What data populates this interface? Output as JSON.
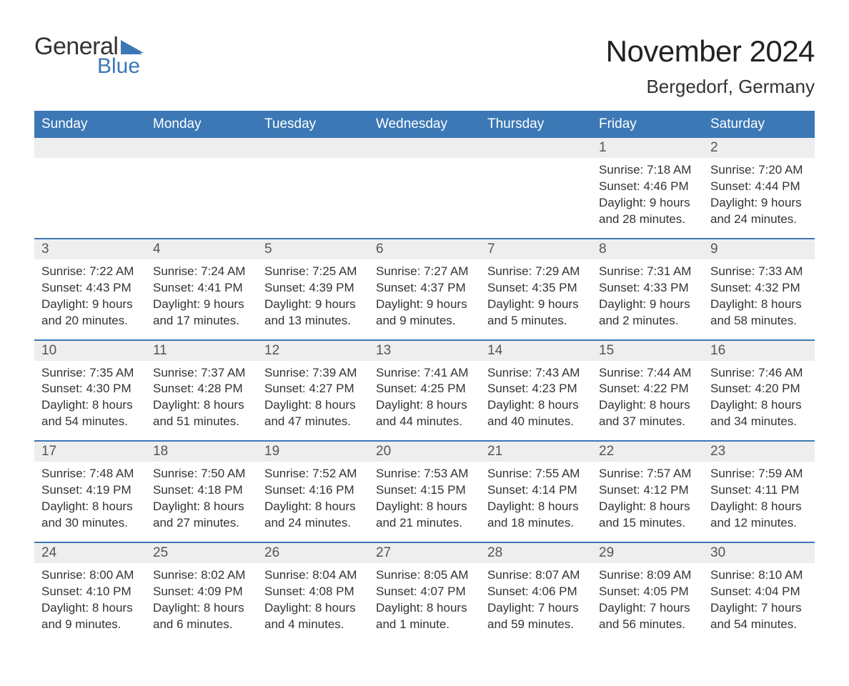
{
  "logo": {
    "text_general": "General",
    "text_blue": "Blue",
    "flag_color": "#3b78b5"
  },
  "header": {
    "month_title": "November 2024",
    "location": "Bergedorf, Germany"
  },
  "colors": {
    "header_bg": "#3b78b5",
    "header_text": "#ffffff",
    "week_rule": "#3b78b5",
    "daynum_bg": "#eeeeee",
    "text": "#333333"
  },
  "typography": {
    "title_fontsize": 42,
    "location_fontsize": 26,
    "dow_fontsize": 19,
    "daynum_fontsize": 19,
    "detail_fontsize": 17
  },
  "layout": {
    "structure_type": "calendar-table",
    "columns": 7,
    "weeks": 5
  },
  "days_of_week": [
    "Sunday",
    "Monday",
    "Tuesday",
    "Wednesday",
    "Thursday",
    "Friday",
    "Saturday"
  ],
  "weeks": [
    {
      "days": [
        {
          "n": "",
          "lines": [
            "",
            "",
            "",
            ""
          ]
        },
        {
          "n": "",
          "lines": [
            "",
            "",
            "",
            ""
          ]
        },
        {
          "n": "",
          "lines": [
            "",
            "",
            "",
            ""
          ]
        },
        {
          "n": "",
          "lines": [
            "",
            "",
            "",
            ""
          ]
        },
        {
          "n": "",
          "lines": [
            "",
            "",
            "",
            ""
          ]
        },
        {
          "n": "1",
          "lines": [
            "Sunrise: 7:18 AM",
            "Sunset: 4:46 PM",
            "Daylight: 9 hours",
            "and 28 minutes."
          ]
        },
        {
          "n": "2",
          "lines": [
            "Sunrise: 7:20 AM",
            "Sunset: 4:44 PM",
            "Daylight: 9 hours",
            "and 24 minutes."
          ]
        }
      ]
    },
    {
      "days": [
        {
          "n": "3",
          "lines": [
            "Sunrise: 7:22 AM",
            "Sunset: 4:43 PM",
            "Daylight: 9 hours",
            "and 20 minutes."
          ]
        },
        {
          "n": "4",
          "lines": [
            "Sunrise: 7:24 AM",
            "Sunset: 4:41 PM",
            "Daylight: 9 hours",
            "and 17 minutes."
          ]
        },
        {
          "n": "5",
          "lines": [
            "Sunrise: 7:25 AM",
            "Sunset: 4:39 PM",
            "Daylight: 9 hours",
            "and 13 minutes."
          ]
        },
        {
          "n": "6",
          "lines": [
            "Sunrise: 7:27 AM",
            "Sunset: 4:37 PM",
            "Daylight: 9 hours",
            "and 9 minutes."
          ]
        },
        {
          "n": "7",
          "lines": [
            "Sunrise: 7:29 AM",
            "Sunset: 4:35 PM",
            "Daylight: 9 hours",
            "and 5 minutes."
          ]
        },
        {
          "n": "8",
          "lines": [
            "Sunrise: 7:31 AM",
            "Sunset: 4:33 PM",
            "Daylight: 9 hours",
            "and 2 minutes."
          ]
        },
        {
          "n": "9",
          "lines": [
            "Sunrise: 7:33 AM",
            "Sunset: 4:32 PM",
            "Daylight: 8 hours",
            "and 58 minutes."
          ]
        }
      ]
    },
    {
      "days": [
        {
          "n": "10",
          "lines": [
            "Sunrise: 7:35 AM",
            "Sunset: 4:30 PM",
            "Daylight: 8 hours",
            "and 54 minutes."
          ]
        },
        {
          "n": "11",
          "lines": [
            "Sunrise: 7:37 AM",
            "Sunset: 4:28 PM",
            "Daylight: 8 hours",
            "and 51 minutes."
          ]
        },
        {
          "n": "12",
          "lines": [
            "Sunrise: 7:39 AM",
            "Sunset: 4:27 PM",
            "Daylight: 8 hours",
            "and 47 minutes."
          ]
        },
        {
          "n": "13",
          "lines": [
            "Sunrise: 7:41 AM",
            "Sunset: 4:25 PM",
            "Daylight: 8 hours",
            "and 44 minutes."
          ]
        },
        {
          "n": "14",
          "lines": [
            "Sunrise: 7:43 AM",
            "Sunset: 4:23 PM",
            "Daylight: 8 hours",
            "and 40 minutes."
          ]
        },
        {
          "n": "15",
          "lines": [
            "Sunrise: 7:44 AM",
            "Sunset: 4:22 PM",
            "Daylight: 8 hours",
            "and 37 minutes."
          ]
        },
        {
          "n": "16",
          "lines": [
            "Sunrise: 7:46 AM",
            "Sunset: 4:20 PM",
            "Daylight: 8 hours",
            "and 34 minutes."
          ]
        }
      ]
    },
    {
      "days": [
        {
          "n": "17",
          "lines": [
            "Sunrise: 7:48 AM",
            "Sunset: 4:19 PM",
            "Daylight: 8 hours",
            "and 30 minutes."
          ]
        },
        {
          "n": "18",
          "lines": [
            "Sunrise: 7:50 AM",
            "Sunset: 4:18 PM",
            "Daylight: 8 hours",
            "and 27 minutes."
          ]
        },
        {
          "n": "19",
          "lines": [
            "Sunrise: 7:52 AM",
            "Sunset: 4:16 PM",
            "Daylight: 8 hours",
            "and 24 minutes."
          ]
        },
        {
          "n": "20",
          "lines": [
            "Sunrise: 7:53 AM",
            "Sunset: 4:15 PM",
            "Daylight: 8 hours",
            "and 21 minutes."
          ]
        },
        {
          "n": "21",
          "lines": [
            "Sunrise: 7:55 AM",
            "Sunset: 4:14 PM",
            "Daylight: 8 hours",
            "and 18 minutes."
          ]
        },
        {
          "n": "22",
          "lines": [
            "Sunrise: 7:57 AM",
            "Sunset: 4:12 PM",
            "Daylight: 8 hours",
            "and 15 minutes."
          ]
        },
        {
          "n": "23",
          "lines": [
            "Sunrise: 7:59 AM",
            "Sunset: 4:11 PM",
            "Daylight: 8 hours",
            "and 12 minutes."
          ]
        }
      ]
    },
    {
      "days": [
        {
          "n": "24",
          "lines": [
            "Sunrise: 8:00 AM",
            "Sunset: 4:10 PM",
            "Daylight: 8 hours",
            "and 9 minutes."
          ]
        },
        {
          "n": "25",
          "lines": [
            "Sunrise: 8:02 AM",
            "Sunset: 4:09 PM",
            "Daylight: 8 hours",
            "and 6 minutes."
          ]
        },
        {
          "n": "26",
          "lines": [
            "Sunrise: 8:04 AM",
            "Sunset: 4:08 PM",
            "Daylight: 8 hours",
            "and 4 minutes."
          ]
        },
        {
          "n": "27",
          "lines": [
            "Sunrise: 8:05 AM",
            "Sunset: 4:07 PM",
            "Daylight: 8 hours",
            "and 1 minute."
          ]
        },
        {
          "n": "28",
          "lines": [
            "Sunrise: 8:07 AM",
            "Sunset: 4:06 PM",
            "Daylight: 7 hours",
            "and 59 minutes."
          ]
        },
        {
          "n": "29",
          "lines": [
            "Sunrise: 8:09 AM",
            "Sunset: 4:05 PM",
            "Daylight: 7 hours",
            "and 56 minutes."
          ]
        },
        {
          "n": "30",
          "lines": [
            "Sunrise: 8:10 AM",
            "Sunset: 4:04 PM",
            "Daylight: 7 hours",
            "and 54 minutes."
          ]
        }
      ]
    }
  ]
}
